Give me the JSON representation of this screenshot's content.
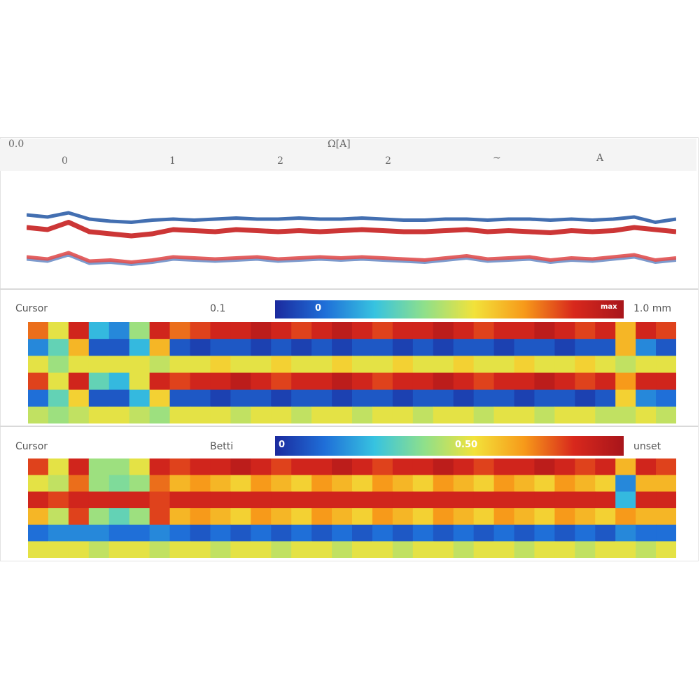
{
  "header": {
    "corner_label": "0.0",
    "center_label": "Ω[A]",
    "ticks": [
      "0",
      "1",
      "2",
      "2",
      "~",
      "A"
    ]
  },
  "panels": {
    "middle": {
      "left_label": "Cursor",
      "mid_label": "0.1",
      "right_label": "1.0 mm",
      "cbar_label": "0",
      "cbar_max": "max"
    },
    "bottom": {
      "left_label": "Cursor",
      "mid_label": "Betti",
      "right_label": "unset",
      "cbar_label": "0",
      "cbar_mid": "0.50"
    }
  },
  "colors": {
    "line_blue": "#2f5fa8",
    "line_red": "#c62020",
    "line_light_red": "#e05050",
    "line_light_blue": "#6f8fc8"
  },
  "chart_data": [
    {
      "type": "line",
      "series": [
        {
          "values": [
            0.62,
            0.6,
            0.64,
            0.58,
            0.56,
            0.55,
            0.57,
            0.58,
            0.57,
            0.58,
            0.59,
            0.58,
            0.58,
            0.59,
            0.58,
            0.58,
            0.59,
            0.58,
            0.57,
            0.57,
            0.58,
            0.58,
            0.57,
            0.58,
            0.58,
            0.57,
            0.58,
            0.57,
            0.58,
            0.6,
            0.55,
            0.58
          ]
        },
        {
          "values": [
            0.5,
            0.48,
            0.55,
            0.46,
            0.44,
            0.42,
            0.44,
            0.48,
            0.47,
            0.46,
            0.48,
            0.47,
            0.46,
            0.47,
            0.46,
            0.47,
            0.48,
            0.47,
            0.46,
            0.46,
            0.47,
            0.48,
            0.46,
            0.47,
            0.46,
            0.45,
            0.47,
            0.46,
            0.47,
            0.5,
            0.48,
            0.46
          ]
        },
        {
          "values": [
            0.2,
            0.18,
            0.24,
            0.16,
            0.17,
            0.15,
            0.17,
            0.2,
            0.19,
            0.18,
            0.19,
            0.2,
            0.18,
            0.19,
            0.2,
            0.19,
            0.2,
            0.19,
            0.18,
            0.17,
            0.19,
            0.21,
            0.18,
            0.19,
            0.2,
            0.17,
            0.19,
            0.18,
            0.2,
            0.22,
            0.17,
            0.19
          ]
        },
        {
          "values": [
            0.22,
            0.2,
            0.26,
            0.18,
            0.19,
            0.17,
            0.19,
            0.22,
            0.21,
            0.2,
            0.21,
            0.22,
            0.2,
            0.21,
            0.22,
            0.21,
            0.22,
            0.21,
            0.2,
            0.19,
            0.21,
            0.23,
            0.2,
            0.21,
            0.22,
            0.19,
            0.21,
            0.2,
            0.22,
            0.24,
            0.19,
            0.21
          ]
        }
      ]
    },
    {
      "type": "heatmap",
      "rows": [
        [
          0.8,
          0.6,
          0.9,
          0.3,
          0.2,
          0.5,
          0.9,
          0.8,
          0.85,
          0.9,
          0.9,
          0.95,
          0.9,
          0.85,
          0.9,
          0.95,
          0.9,
          0.85,
          0.9,
          0.9,
          0.95,
          0.9,
          0.85,
          0.9,
          0.9,
          0.95,
          0.9,
          0.85,
          0.9,
          0.7,
          0.9,
          0.85
        ],
        [
          0.2,
          0.4,
          0.7,
          0.1,
          0.1,
          0.3,
          0.7,
          0.1,
          0.05,
          0.1,
          0.1,
          0.05,
          0.1,
          0.05,
          0.1,
          0.05,
          0.1,
          0.1,
          0.05,
          0.1,
          0.05,
          0.1,
          0.1,
          0.05,
          0.1,
          0.1,
          0.05,
          0.1,
          0.1,
          0.7,
          0.2,
          0.1
        ],
        [
          0.6,
          0.5,
          0.6,
          0.6,
          0.6,
          0.6,
          0.55,
          0.6,
          0.6,
          0.65,
          0.6,
          0.6,
          0.65,
          0.6,
          0.6,
          0.65,
          0.6,
          0.6,
          0.65,
          0.6,
          0.6,
          0.65,
          0.6,
          0.6,
          0.65,
          0.6,
          0.6,
          0.65,
          0.6,
          0.55,
          0.6,
          0.6
        ],
        [
          0.85,
          0.6,
          0.9,
          0.4,
          0.3,
          0.6,
          0.9,
          0.85,
          0.9,
          0.9,
          0.95,
          0.9,
          0.85,
          0.9,
          0.9,
          0.95,
          0.9,
          0.85,
          0.9,
          0.9,
          0.95,
          0.9,
          0.85,
          0.9,
          0.9,
          0.95,
          0.9,
          0.85,
          0.9,
          0.75,
          0.9,
          0.9
        ],
        [
          0.15,
          0.4,
          0.65,
          0.1,
          0.1,
          0.3,
          0.65,
          0.1,
          0.1,
          0.05,
          0.1,
          0.1,
          0.05,
          0.1,
          0.1,
          0.05,
          0.1,
          0.1,
          0.05,
          0.1,
          0.1,
          0.05,
          0.1,
          0.1,
          0.05,
          0.1,
          0.1,
          0.05,
          0.1,
          0.65,
          0.2,
          0.15
        ],
        [
          0.55,
          0.5,
          0.55,
          0.6,
          0.6,
          0.55,
          0.5,
          0.6,
          0.6,
          0.6,
          0.55,
          0.6,
          0.6,
          0.55,
          0.6,
          0.6,
          0.55,
          0.6,
          0.6,
          0.55,
          0.6,
          0.6,
          0.55,
          0.6,
          0.6,
          0.55,
          0.6,
          0.6,
          0.55,
          0.55,
          0.6,
          0.55
        ]
      ]
    },
    {
      "type": "heatmap",
      "rows": [
        [
          0.85,
          0.6,
          0.9,
          0.5,
          0.5,
          0.6,
          0.9,
          0.85,
          0.9,
          0.9,
          0.95,
          0.9,
          0.85,
          0.9,
          0.9,
          0.95,
          0.9,
          0.85,
          0.9,
          0.9,
          0.95,
          0.9,
          0.85,
          0.9,
          0.9,
          0.95,
          0.9,
          0.85,
          0.9,
          0.7,
          0.9,
          0.85
        ],
        [
          0.6,
          0.55,
          0.8,
          0.5,
          0.45,
          0.5,
          0.8,
          0.7,
          0.75,
          0.7,
          0.65,
          0.75,
          0.7,
          0.65,
          0.75,
          0.7,
          0.65,
          0.75,
          0.7,
          0.65,
          0.75,
          0.7,
          0.65,
          0.75,
          0.7,
          0.65,
          0.75,
          0.7,
          0.65,
          0.2,
          0.7,
          0.7
        ],
        [
          0.9,
          0.85,
          0.9,
          0.9,
          0.9,
          0.9,
          0.85,
          0.9,
          0.9,
          0.9,
          0.9,
          0.9,
          0.9,
          0.9,
          0.9,
          0.9,
          0.9,
          0.9,
          0.9,
          0.9,
          0.9,
          0.9,
          0.9,
          0.9,
          0.9,
          0.9,
          0.9,
          0.9,
          0.9,
          0.3,
          0.9,
          0.9
        ],
        [
          0.7,
          0.55,
          0.85,
          0.5,
          0.4,
          0.5,
          0.85,
          0.7,
          0.75,
          0.7,
          0.65,
          0.75,
          0.7,
          0.65,
          0.75,
          0.7,
          0.65,
          0.75,
          0.7,
          0.65,
          0.75,
          0.7,
          0.65,
          0.75,
          0.7,
          0.65,
          0.75,
          0.7,
          0.65,
          0.75,
          0.7,
          0.7
        ],
        [
          0.15,
          0.2,
          0.2,
          0.2,
          0.15,
          0.15,
          0.2,
          0.15,
          0.1,
          0.15,
          0.1,
          0.15,
          0.1,
          0.15,
          0.1,
          0.15,
          0.1,
          0.15,
          0.1,
          0.15,
          0.1,
          0.15,
          0.1,
          0.15,
          0.1,
          0.15,
          0.1,
          0.15,
          0.1,
          0.2,
          0.15,
          0.15
        ],
        [
          0.6,
          0.6,
          0.6,
          0.55,
          0.6,
          0.6,
          0.55,
          0.6,
          0.6,
          0.55,
          0.6,
          0.6,
          0.55,
          0.6,
          0.6,
          0.55,
          0.6,
          0.6,
          0.55,
          0.6,
          0.6,
          0.55,
          0.6,
          0.6,
          0.55,
          0.6,
          0.6,
          0.55,
          0.6,
          0.6,
          0.55,
          0.6
        ]
      ]
    }
  ]
}
